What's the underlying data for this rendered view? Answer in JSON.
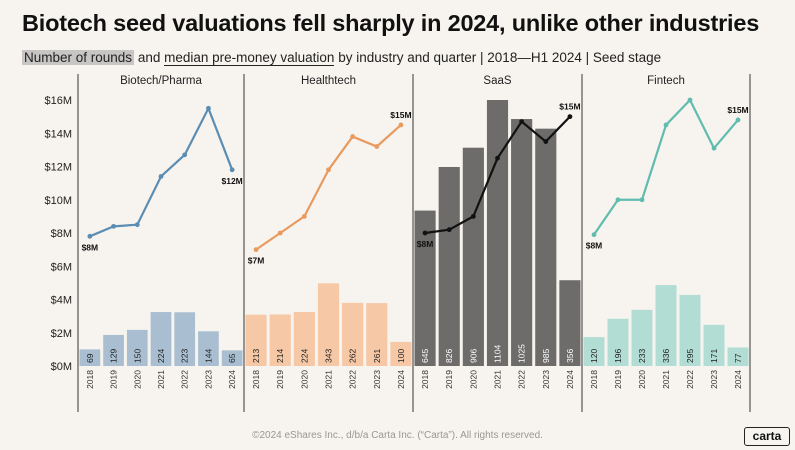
{
  "title": "Biotech seed valuations fell sharply in 2024, unlike other industries",
  "subtitle": {
    "part1": "Number of rounds",
    "part2": " and ",
    "part3": "median pre-money valuation",
    "part4": " by industry and quarter | 2018—H1 2024 | Seed stage"
  },
  "footer": "©2024 eShares Inc., d/b/a Carta Inc. (“Carta”). All rights reserved.",
  "logo": "carta",
  "chart_data": {
    "type": "bar+line",
    "y_ticks": [
      "$0M",
      "$2M",
      "$4M",
      "$6M",
      "$8M",
      "$10M",
      "$12M",
      "$14M",
      "$16M"
    ],
    "ylim": [
      0,
      16
    ],
    "years": [
      "2018",
      "2019",
      "2020",
      "2021",
      "2022",
      "2023",
      "2024"
    ],
    "panels": [
      {
        "name": "Biotech/Pharma",
        "bar_color": "#a9bfd1",
        "line_color": "#5b8db3",
        "label_color": "#222222",
        "rounds": [
          69,
          129,
          150,
          224,
          223,
          144,
          65
        ],
        "valuation": [
          7.8,
          8.4,
          8.5,
          11.4,
          12.7,
          15.5,
          11.8
        ],
        "labels": [
          {
            "i": 0,
            "text": "$8M",
            "pos": "below"
          },
          {
            "i": 6,
            "text": "$12M",
            "pos": "below"
          }
        ]
      },
      {
        "name": "Healthtech",
        "bar_color": "#f6c8a6",
        "line_color": "#e89a5f",
        "label_color": "#222222",
        "rounds": [
          213,
          214,
          224,
          343,
          262,
          261,
          100
        ],
        "valuation": [
          7.0,
          8.0,
          9.0,
          11.8,
          13.8,
          13.2,
          14.5
        ],
        "labels": [
          {
            "i": 0,
            "text": "$7M",
            "pos": "below"
          },
          {
            "i": 6,
            "text": "$15M",
            "pos": "above"
          }
        ]
      },
      {
        "name": "SaaS",
        "bar_color": "#6d6c6a",
        "line_color": "#111111",
        "label_color": "#ffffff",
        "rounds": [
          645,
          826,
          906,
          1104,
          1025,
          985,
          356
        ],
        "valuation": [
          8.0,
          8.2,
          9.0,
          12.5,
          14.7,
          13.5,
          15.0
        ],
        "labels": [
          {
            "i": 0,
            "text": "$8M",
            "pos": "below"
          },
          {
            "i": 6,
            "text": "$15M",
            "pos": "above"
          }
        ]
      },
      {
        "name": "Fintech",
        "bar_color": "#b2ddd5",
        "line_color": "#5fbcae",
        "label_color": "#222222",
        "rounds": [
          120,
          196,
          233,
          336,
          295,
          171,
          77
        ],
        "valuation": [
          7.9,
          10.0,
          10.0,
          14.5,
          16.0,
          13.1,
          14.8
        ],
        "labels": [
          {
            "i": 0,
            "text": "$8M",
            "pos": "below"
          },
          {
            "i": 6,
            "text": "$15M",
            "pos": "above"
          }
        ]
      }
    ]
  }
}
